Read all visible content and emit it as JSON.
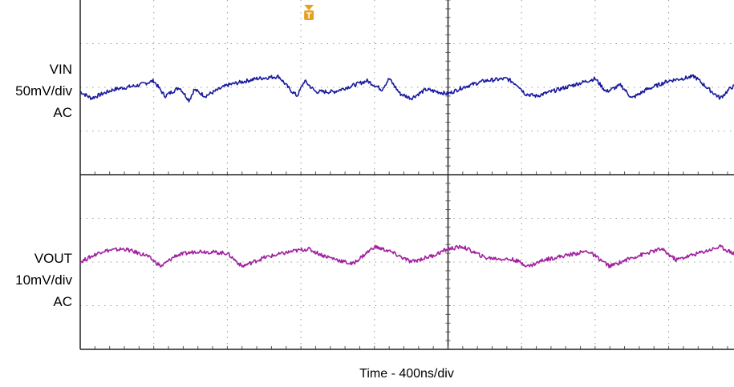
{
  "chart_data": {
    "type": "line",
    "x_scale_label": "Time - 400ns/div",
    "x_divisions": 10,
    "grid": "dotted",
    "trigger_marker": {
      "label": "T",
      "color": "#e8a020",
      "x_div": 3
    },
    "channels": [
      {
        "name": "VIN",
        "scale": "50mV/div",
        "coupling": "AC",
        "color": "#1a1a9e",
        "divisions": 4,
        "baseline_div": 2.0,
        "x_div": [
          0,
          0.15,
          0.45,
          0.8,
          1.0,
          1.15,
          1.35,
          1.48,
          1.55,
          1.7,
          2.0,
          2.4,
          2.7,
          2.85,
          2.95,
          3.05,
          3.2,
          3.45,
          3.9,
          4.1,
          4.2,
          4.35,
          4.5,
          4.7,
          5.0,
          5.2,
          5.5,
          5.8,
          5.95,
          6.05,
          6.2,
          6.5,
          7.0,
          7.15,
          7.35,
          7.5,
          7.7,
          8.0,
          8.35,
          8.55,
          8.7,
          8.85,
          9.15,
          9.4,
          9.6,
          9.8,
          10.0
        ],
        "y_div": [
          -0.1,
          -0.25,
          -0.05,
          0.05,
          0.15,
          -0.2,
          0.0,
          -0.3,
          -0.05,
          -0.2,
          0.05,
          0.2,
          0.25,
          -0.05,
          -0.2,
          0.15,
          -0.1,
          -0.1,
          0.15,
          -0.05,
          0.2,
          -0.15,
          -0.25,
          -0.05,
          -0.15,
          0.0,
          0.15,
          0.2,
          0.05,
          -0.15,
          -0.2,
          -0.05,
          0.2,
          -0.1,
          0.05,
          -0.25,
          -0.05,
          0.15,
          0.25,
          -0.05,
          -0.25,
          0.0,
          0.15,
          0.18,
          -0.1,
          -0.25,
          -0.28
        ]
      },
      {
        "name": "VOUT",
        "scale": "10mV/div",
        "coupling": "AC",
        "color": "#a020a0",
        "divisions": 4,
        "baseline_div": 1.8,
        "x_div": [
          0,
          0.3,
          0.6,
          0.9,
          1.1,
          1.3,
          1.6,
          2.0,
          2.2,
          2.5,
          2.9,
          3.1,
          3.3,
          3.7,
          4.0,
          4.2,
          4.5,
          4.8,
          5.0,
          5.2,
          5.5,
          5.9,
          6.1,
          6.3,
          6.6,
          6.9,
          7.2,
          7.5,
          7.9,
          8.1,
          8.4,
          8.7,
          9.0,
          9.3,
          9.6,
          10.0
        ],
        "y_div": [
          -0.2,
          0.05,
          0.1,
          -0.05,
          -0.3,
          -0.05,
          0.05,
          0.0,
          -0.3,
          -0.1,
          0.05,
          0.1,
          -0.05,
          -0.25,
          0.15,
          0.05,
          -0.2,
          -0.05,
          0.1,
          0.15,
          -0.1,
          -0.15,
          -0.3,
          -0.15,
          -0.05,
          0.05,
          -0.3,
          -0.1,
          0.1,
          -0.15,
          0.0,
          0.15,
          -0.1,
          0.05,
          -0.25,
          -0.1
        ]
      }
    ]
  }
}
